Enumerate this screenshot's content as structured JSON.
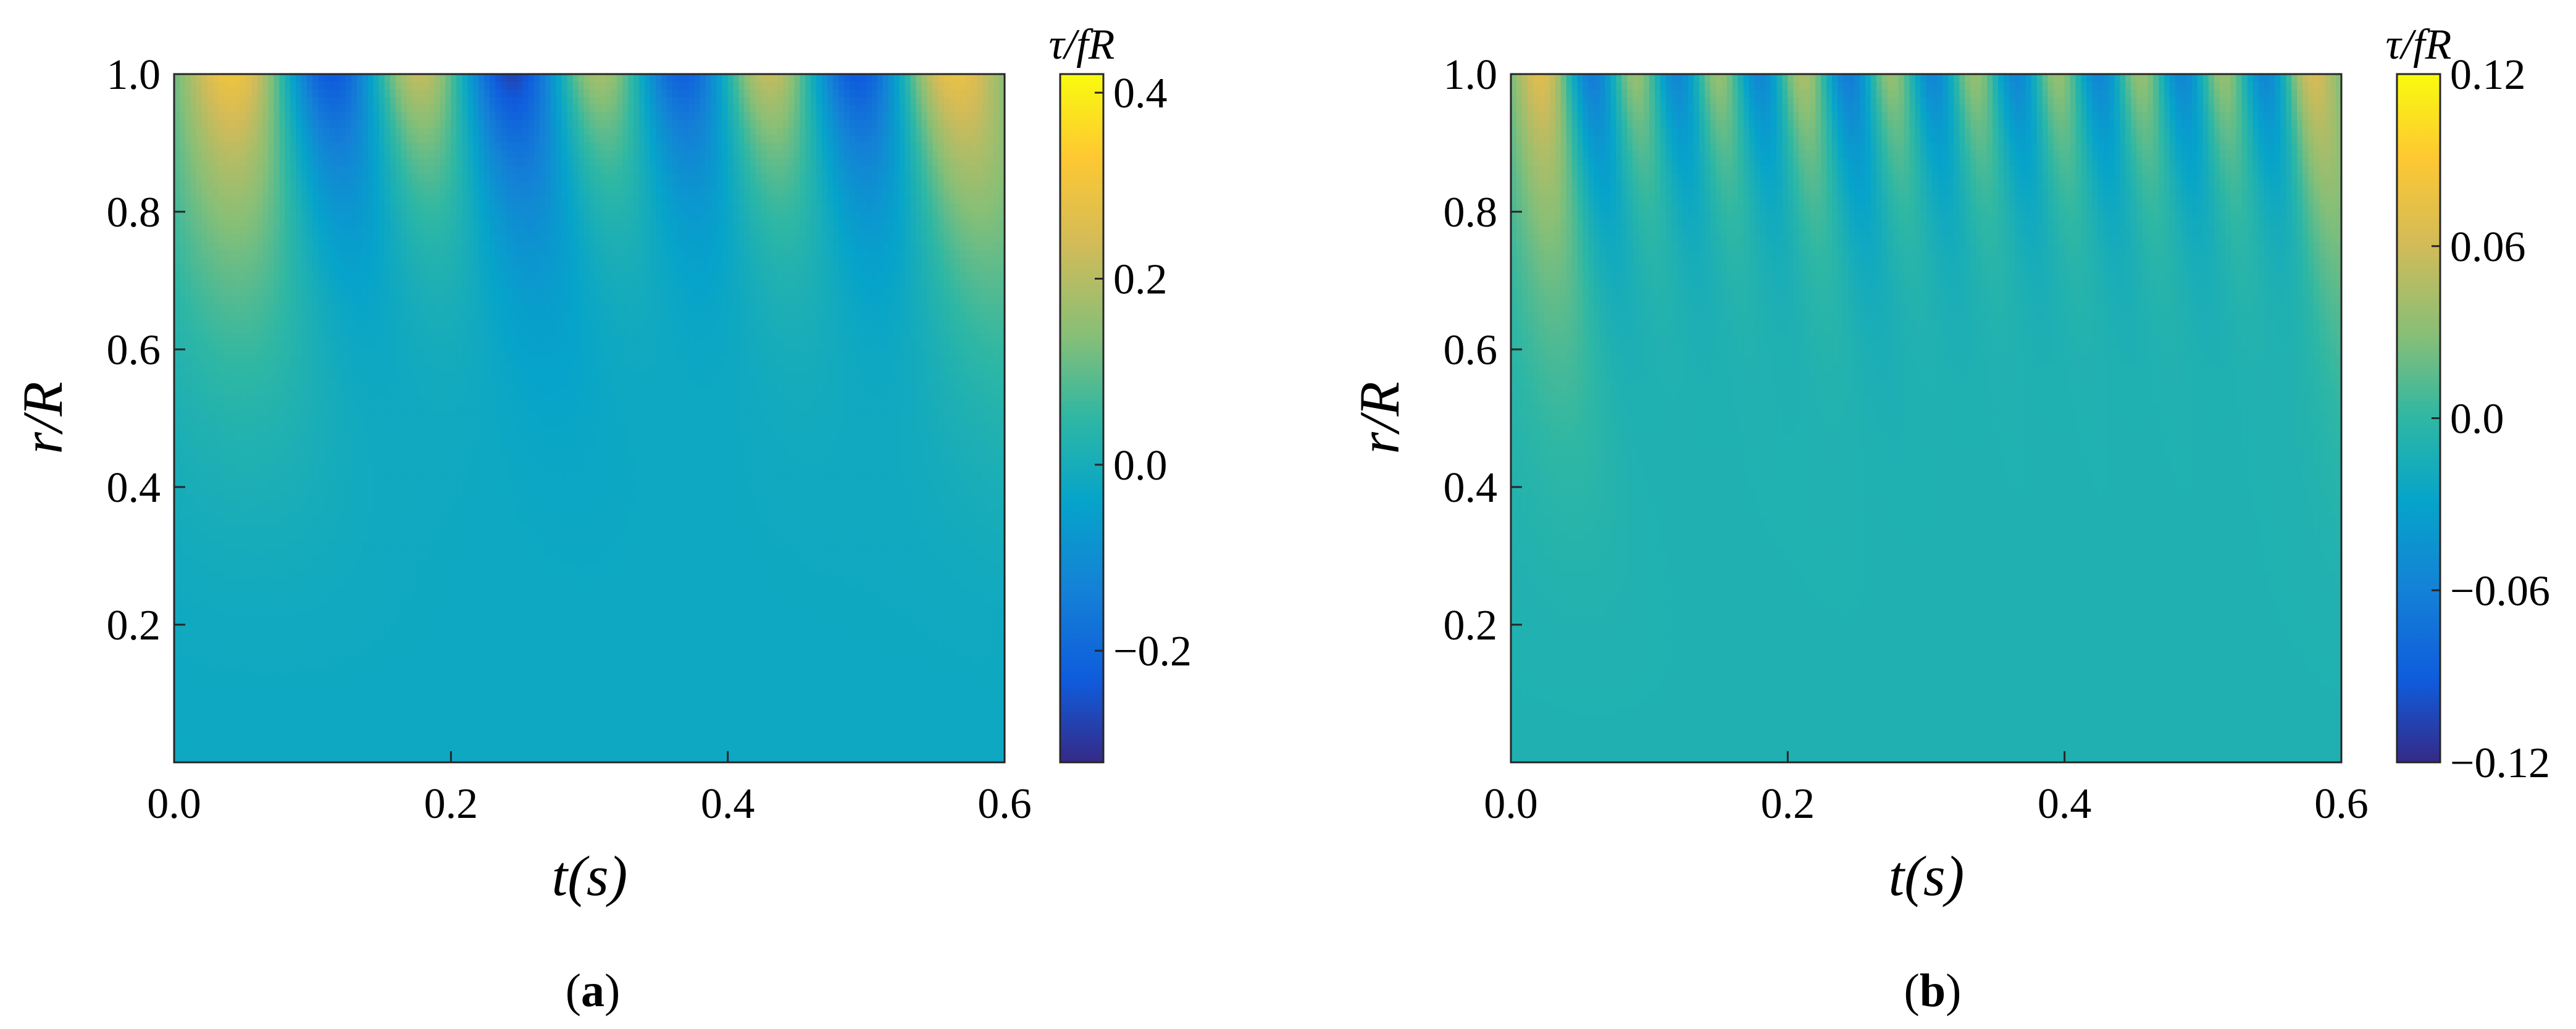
{
  "chart_data": [
    {
      "type": "heatmap",
      "panel_label": "a",
      "xlabel": "t(s)",
      "ylabel": "r/R",
      "xlim": [
        0.0,
        0.6
      ],
      "ylim": [
        0.0,
        1.0
      ],
      "x_ticks": [
        "0.0",
        "0.2",
        "0.4",
        "0.6"
      ],
      "y_ticks": [
        "0.2",
        "0.4",
        "0.6",
        "0.8",
        "1.0"
      ],
      "colorbar": {
        "title": "τ/fR",
        "range": [
          -0.32,
          0.42
        ],
        "ticks": [
          "0.4",
          "0.2",
          "0.0",
          "−0.2"
        ],
        "tick_values": [
          0.4,
          0.2,
          0.0,
          -0.2
        ],
        "colormap": "parula"
      },
      "field": {
        "peak_times_s": [
          0.05,
          0.175,
          0.31,
          0.43,
          0.555
        ],
        "trough_times_s": [
          0.115,
          0.245,
          0.365,
          0.495
        ],
        "wall_amplitude": 0.37,
        "baseline": -0.02
      }
    },
    {
      "type": "heatmap",
      "panel_label": "b",
      "xlabel": "t(s)",
      "ylabel": "r/R",
      "xlim": [
        0.0,
        0.6
      ],
      "ylim": [
        0.0,
        1.0
      ],
      "x_ticks": [
        "0.0",
        "0.2",
        "0.4",
        "0.6"
      ],
      "y_ticks": [
        "0.2",
        "0.4",
        "0.6",
        "0.8",
        "1.0"
      ],
      "colorbar": {
        "title": "τ/fR",
        "range": [
          -0.12,
          0.12
        ],
        "ticks": [
          "0.12",
          "0.06",
          "0.0",
          "−0.06",
          "−0.12"
        ],
        "tick_values": [
          0.12,
          0.06,
          0.0,
          -0.06,
          -0.12
        ],
        "colormap": "parula"
      },
      "field": {
        "peak_times_s": [
          0.025,
          0.09,
          0.15,
          0.21,
          0.275,
          0.335,
          0.395,
          0.455,
          0.515,
          0.575
        ],
        "trough_times_s": [
          0.06,
          0.12,
          0.18,
          0.245,
          0.305,
          0.365,
          0.425,
          0.485,
          0.545
        ],
        "wall_amplitude": 0.09,
        "baseline": -0.01
      }
    }
  ],
  "captions": {
    "a": {
      "open": "(",
      "letter": "a",
      "close": ")"
    },
    "b": {
      "open": "(",
      "letter": "b",
      "close": ")"
    }
  }
}
